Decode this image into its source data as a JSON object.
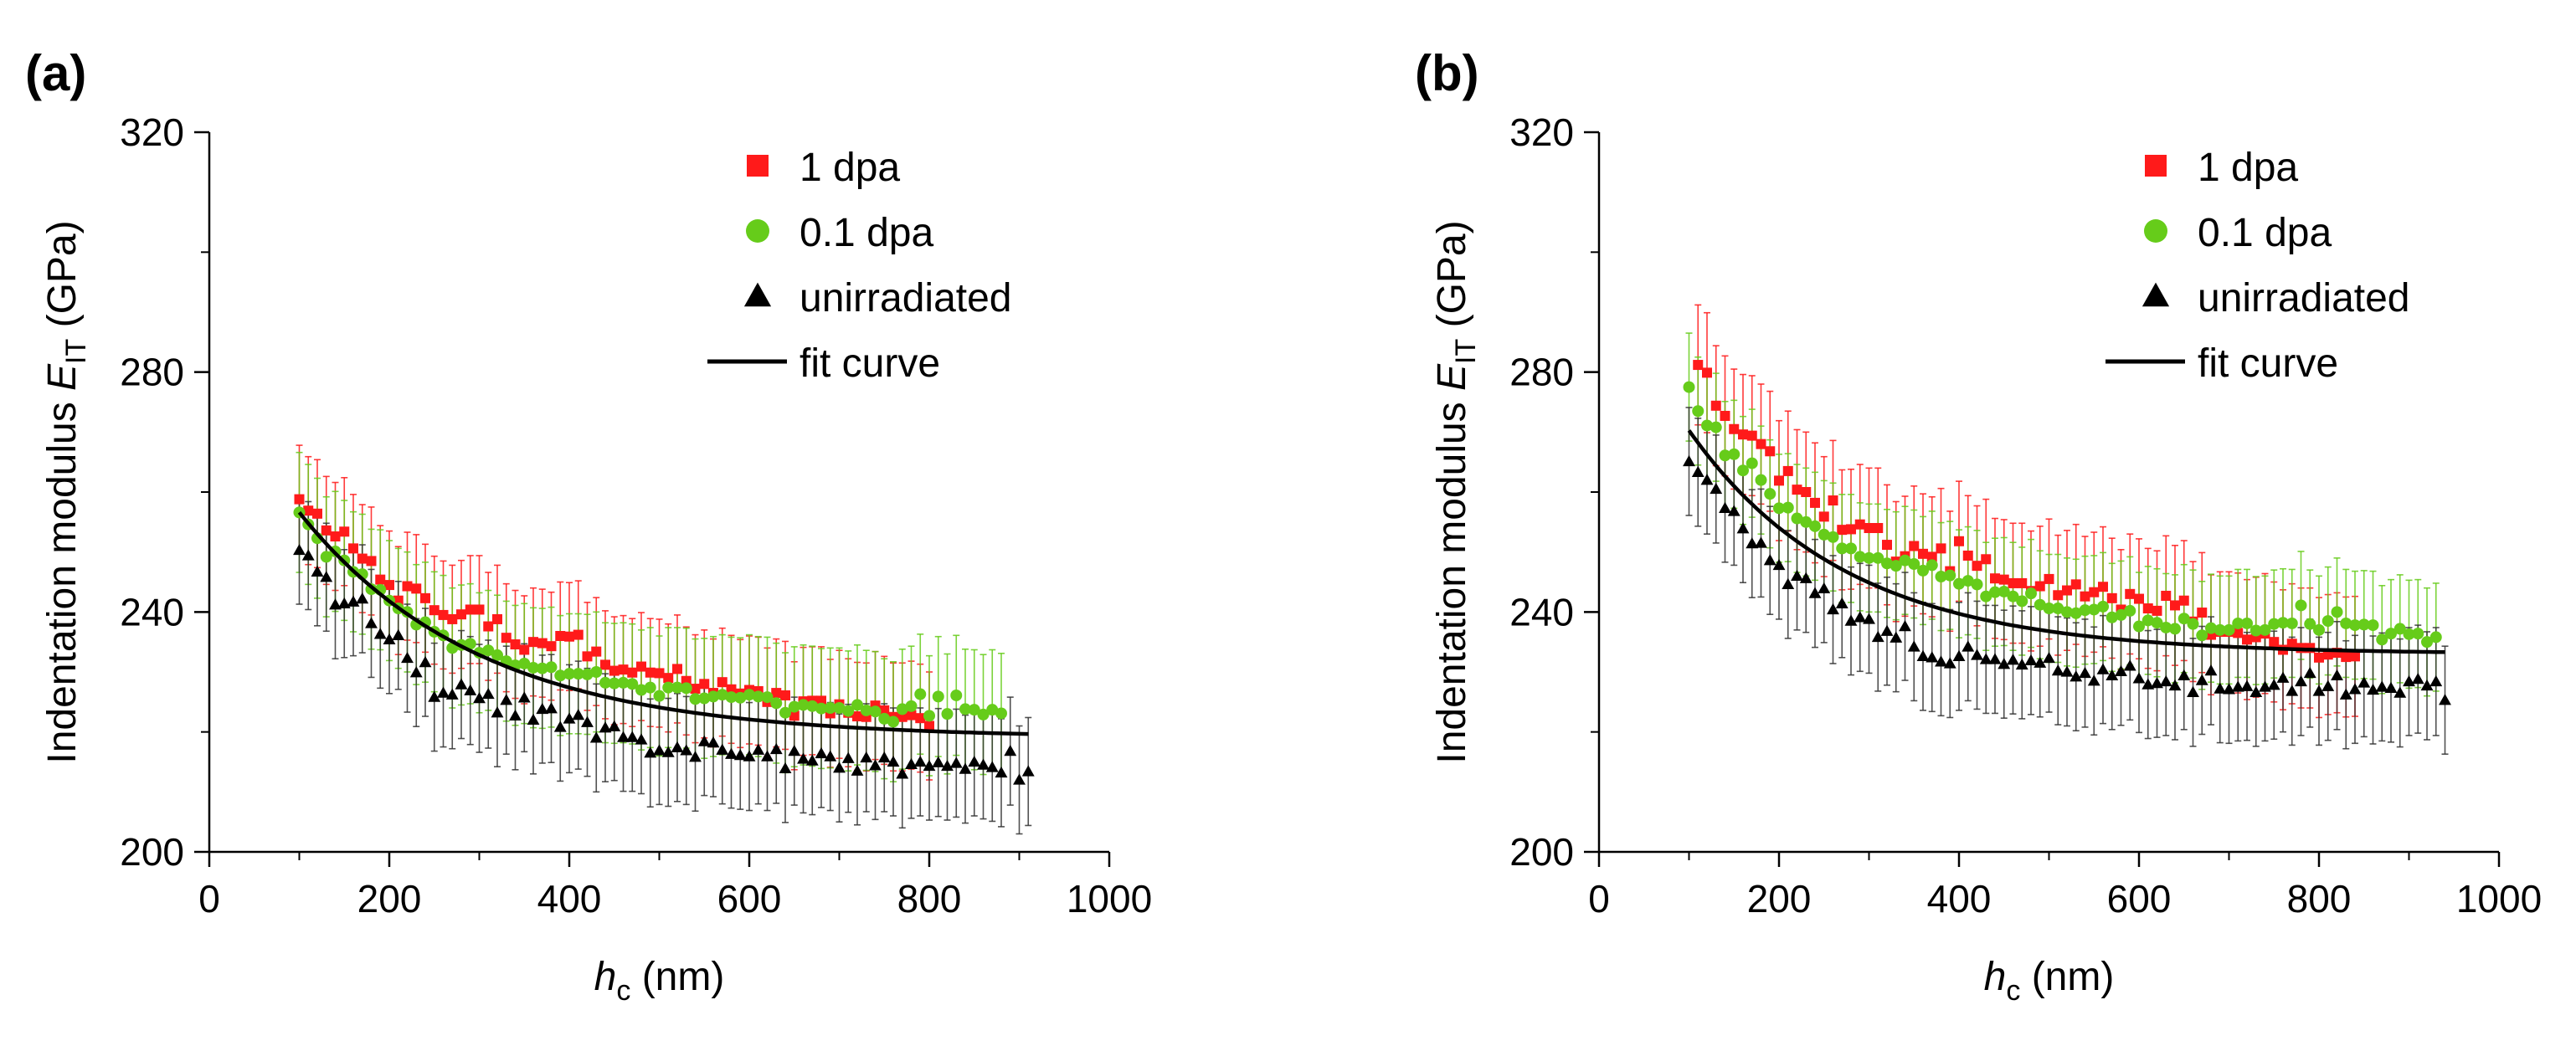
{
  "chart_data": [
    {
      "type": "scatter",
      "panel_label": "(a)",
      "title": "",
      "xlabel": {
        "italic": "h",
        "sub": "c",
        "rest": " (nm)"
      },
      "ylabel": {
        "prefix": "Indentation modulus ",
        "italic": "E",
        "sub": "IT",
        "rest": " (GPa)"
      },
      "xlim": [
        0,
        1000
      ],
      "ylim": [
        200,
        320
      ],
      "xticks": [
        0,
        200,
        400,
        600,
        800,
        1000
      ],
      "yticks": [
        200,
        240,
        280,
        320
      ],
      "grid": false,
      "legend_position": "top-right",
      "fit_curve": {
        "name": "fit curve",
        "x_range": [
          100,
          910
        ],
        "y_inf": 219,
        "amplitude": 62,
        "decay_nm": 200
      },
      "series": [
        {
          "name": "1 dpa",
          "marker": "square",
          "color": "#ff1a1a",
          "x_start": 100,
          "x_step": 10,
          "y": [
            258.8,
            256.9,
            256.4,
            253.6,
            252.6,
            253.4,
            250.6,
            248.9,
            248.5,
            245.4,
            244.5,
            241.9,
            244.3,
            243.9,
            242.3,
            240.3,
            239.5,
            238.8,
            239.6,
            240.4,
            240.4,
            237.6,
            238.8,
            235.7,
            234.6,
            233.7,
            235.0,
            234.8,
            234.3,
            236.0,
            235.9,
            236.2,
            232.6,
            233.4,
            231.2,
            230.2,
            230.4,
            229.9,
            230.9,
            229.9,
            229.8,
            229.0,
            230.5,
            228.5,
            227.2,
            228.0,
            226.5,
            228.3,
            227.1,
            226.4,
            227.0,
            226.8,
            225.0,
            226.5,
            226.1,
            222.7,
            225.1,
            225.2,
            225.2,
            223.1,
            224.6,
            223.2,
            222.6,
            222.5,
            224.4,
            223.6,
            222.5,
            222.5,
            222.8,
            222.3,
            221.0
          ],
          "err": [
            9,
            9,
            9,
            9,
            9,
            9,
            9,
            9,
            9,
            9,
            9,
            9,
            9,
            9,
            9,
            9,
            9,
            9,
            9,
            9,
            9,
            9,
            9,
            9,
            9,
            9,
            9,
            9,
            9,
            9,
            9,
            9,
            9,
            9,
            9,
            9,
            9,
            9,
            9,
            9,
            9,
            9,
            9,
            9,
            9,
            9,
            9,
            9,
            9,
            9,
            9,
            9,
            9,
            9,
            9,
            9,
            9,
            9,
            9,
            9,
            9,
            9,
            9,
            9,
            9,
            9,
            9,
            9,
            9,
            9,
            9
          ]
        },
        {
          "name": "0.1 dpa",
          "marker": "circle",
          "color": "#66cc1a",
          "x_start": 100,
          "x_step": 10,
          "y": [
            256.6,
            254.6,
            252.3,
            249.2,
            250.1,
            248.6,
            246.7,
            246.3,
            243.8,
            243.7,
            241.9,
            240.6,
            240.0,
            237.9,
            238.3,
            236.7,
            236.1,
            234.0,
            234.5,
            234.7,
            233.2,
            233.6,
            232.8,
            231.8,
            231.1,
            231.4,
            230.7,
            230.6,
            230.8,
            229.4,
            229.7,
            229.7,
            229.6,
            230.0,
            228.2,
            228.1,
            228.2,
            228.0,
            227.0,
            227.4,
            226.0,
            227.4,
            227.4,
            227.3,
            225.5,
            225.6,
            225.9,
            226.2,
            225.8,
            225.7,
            226.2,
            225.9,
            225.8,
            224.8,
            223.2,
            224.2,
            224.5,
            224.3,
            223.9,
            224.0,
            224.0,
            223.5,
            224.5,
            223.6,
            223.4,
            222.2,
            221.7,
            223.8,
            224.3,
            226.3,
            222.7,
            225.9,
            223.0,
            226.1,
            223.8,
            223.7,
            222.9,
            223.7,
            223.1
          ],
          "err": [
            10,
            10,
            10,
            10,
            10,
            10,
            10,
            10,
            10,
            10,
            10,
            10,
            10,
            10,
            10,
            10,
            10,
            10,
            10,
            10,
            10,
            10,
            10,
            10,
            10,
            10,
            10,
            10,
            10,
            10,
            10,
            10,
            10,
            10,
            10,
            10,
            10,
            10,
            10,
            10,
            10,
            10,
            10,
            10,
            10,
            10,
            10,
            10,
            10,
            10,
            10,
            10,
            10,
            10,
            10,
            10,
            10,
            10,
            10,
            10,
            10,
            10,
            10,
            10,
            10,
            10,
            10,
            10,
            10,
            10,
            10,
            10,
            10,
            10,
            10,
            10,
            10,
            10,
            10
          ]
        },
        {
          "name": "unirradiated",
          "marker": "triangle",
          "color": "#000000",
          "x_start": 100,
          "x_step": 10,
          "y": [
            250.3,
            249.4,
            246.7,
            245.8,
            241.2,
            241.4,
            241.7,
            242.2,
            238.1,
            236.3,
            235.4,
            236.1,
            232.3,
            229.9,
            231.6,
            225.8,
            226.5,
            226.2,
            227.9,
            226.9,
            225.6,
            226.3,
            223.2,
            225.3,
            222.7,
            225.7,
            222.0,
            223.8,
            223.9,
            220.8,
            222.2,
            222.8,
            221.6,
            219.0,
            220.7,
            220.9,
            219.1,
            219.1,
            218.7,
            216.5,
            216.9,
            216.6,
            217.4,
            216.9,
            215.8,
            218.4,
            218.2,
            217.0,
            216.3,
            216.1,
            215.9,
            217.0,
            215.9,
            217.1,
            213.9,
            216.8,
            215.5,
            215.2,
            216.4,
            215.9,
            214.0,
            215.6,
            213.5,
            215.7,
            214.4,
            215.7,
            215.0,
            213.0,
            214.6,
            215.0,
            214.3,
            214.9,
            214.3,
            214.8,
            213.8,
            215.0,
            214.5,
            214.1,
            213.2,
            216.8,
            212.0,
            213.4
          ],
          "err": [
            9,
            9,
            9,
            9,
            9,
            9,
            9,
            9,
            9,
            9,
            9,
            9,
            9,
            9,
            9,
            9,
            9,
            9,
            9,
            9,
            9,
            9,
            9,
            9,
            9,
            9,
            9,
            9,
            9,
            9,
            9,
            9,
            9,
            9,
            9,
            9,
            9,
            9,
            9,
            9,
            9,
            9,
            9,
            9,
            9,
            9,
            9,
            9,
            9,
            9,
            9,
            9,
            9,
            9,
            9,
            9,
            9,
            9,
            9,
            9,
            9,
            9,
            9,
            9,
            9,
            9,
            9,
            9,
            9,
            9,
            9,
            9,
            9,
            9,
            9,
            9,
            9,
            9,
            9,
            9,
            9,
            9
          ]
        }
      ]
    },
    {
      "type": "scatter",
      "panel_label": "(b)",
      "title": "",
      "xlabel": {
        "italic": "h",
        "sub": "c",
        "rest": " (nm)"
      },
      "ylabel": {
        "prefix": "Indentation modulus ",
        "italic": "E",
        "sub": "IT",
        "rest": " (GPa)"
      },
      "xlim": [
        0,
        1000
      ],
      "ylim": [
        200,
        320
      ],
      "xticks": [
        0,
        200,
        400,
        600,
        800,
        1000
      ],
      "yticks": [
        200,
        240,
        280,
        320
      ],
      "grid": false,
      "legend_position": "top-right",
      "fit_curve": {
        "name": "fit curve",
        "x_range": [
          100,
          940
        ],
        "y_inf": 233,
        "amplitude": 66,
        "decay_nm": 175
      },
      "series": [
        {
          "name": "1 dpa",
          "marker": "square",
          "color": "#ff1a1a",
          "x_start": 110,
          "x_step": 10,
          "y": [
            281.2,
            279.9,
            274.4,
            272.7,
            270.5,
            269.6,
            269.4,
            268.0,
            266.8,
            261.9,
            263.5,
            260.4,
            260.0,
            258.2,
            255.9,
            258.6,
            253.7,
            253.8,
            254.6,
            254.0,
            254.0,
            251.2,
            248.4,
            249.3,
            251.0,
            249.7,
            249.2,
            250.6,
            246.8,
            251.8,
            249.4,
            247.7,
            248.8,
            245.6,
            245.4,
            244.8,
            244.8,
            243.5,
            244.3,
            245.5,
            242.8,
            243.6,
            244.6,
            242.6,
            243.3,
            244.2,
            242.3,
            240.4,
            243.0,
            242.2,
            240.6,
            240.2,
            242.7,
            241.1,
            241.9,
            238.4,
            239.9,
            236.2,
            236.7,
            236.7,
            236.5,
            235.4,
            235.8,
            236.4,
            235.0,
            233.7,
            234.7,
            234.0,
            234.0,
            232.4,
            232.9,
            233.2,
            232.5,
            232.6
          ],
          "err": [
            10,
            10,
            10,
            10,
            10,
            10,
            10,
            10,
            10,
            10,
            10,
            10,
            10,
            10,
            10,
            10,
            10,
            10,
            10,
            10,
            10,
            10,
            10,
            10,
            10,
            10,
            10,
            10,
            10,
            10,
            10,
            10,
            10,
            10,
            10,
            10,
            10,
            10,
            10,
            10,
            10,
            10,
            10,
            10,
            10,
            10,
            10,
            10,
            10,
            10,
            10,
            10,
            10,
            10,
            10,
            10,
            10,
            10,
            10,
            10,
            10,
            10,
            10,
            10,
            10,
            10,
            10,
            10,
            10,
            10,
            10,
            10,
            10,
            10
          ]
        },
        {
          "name": "0.1 dpa",
          "marker": "circle",
          "color": "#66cc1a",
          "x_start": 100,
          "x_step": 10,
          "y": [
            277.5,
            273.5,
            271.1,
            270.8,
            266.1,
            266.3,
            263.6,
            264.8,
            262.0,
            259.7,
            257.3,
            257.4,
            255.6,
            255.0,
            254.3,
            252.9,
            252.5,
            250.6,
            250.6,
            249.2,
            249.0,
            249.0,
            248.1,
            247.7,
            248.6,
            248.0,
            246.9,
            247.8,
            245.9,
            246.1,
            244.7,
            245.2,
            244.6,
            242.6,
            243.3,
            243.4,
            242.6,
            241.8,
            243.1,
            241.2,
            240.6,
            240.6,
            240.0,
            239.8,
            240.3,
            240.4,
            240.9,
            239.1,
            239.5,
            240.2,
            237.6,
            238.6,
            238.2,
            237.4,
            237.2,
            238.9,
            238.0,
            236.1,
            237.3,
            237.0,
            237.0,
            238.1,
            238.1,
            236.9,
            237.0,
            238.0,
            238.2,
            238.1,
            241.1,
            238.0,
            237.0,
            238.5,
            240.0,
            238.1,
            237.8,
            237.9,
            237.8,
            235.4,
            236.4,
            237.2,
            236.3,
            236.4,
            235.0,
            235.8
          ],
          "err": [
            9,
            9,
            9,
            9,
            9,
            9,
            9,
            9,
            9,
            9,
            9,
            9,
            9,
            9,
            9,
            9,
            9,
            9,
            9,
            9,
            9,
            9,
            9,
            9,
            9,
            9,
            9,
            9,
            9,
            9,
            9,
            9,
            9,
            9,
            9,
            9,
            9,
            9,
            9,
            9,
            9,
            9,
            9,
            9,
            9,
            9,
            9,
            9,
            9,
            9,
            9,
            9,
            9,
            9,
            9,
            9,
            9,
            9,
            9,
            9,
            9,
            9,
            9,
            9,
            9,
            9,
            9,
            9,
            9,
            9,
            9,
            9,
            9,
            9,
            9,
            9,
            9,
            9,
            9,
            9,
            9,
            9,
            9,
            9
          ]
        },
        {
          "name": "unirradiated",
          "marker": "triangle",
          "color": "#000000",
          "x_start": 100,
          "x_step": 10,
          "y": [
            265.1,
            263.3,
            262.0,
            260.5,
            257.3,
            256.8,
            253.9,
            251.4,
            251.5,
            248.6,
            247.8,
            244.6,
            246.0,
            245.6,
            243.1,
            243.9,
            240.4,
            241.4,
            238.5,
            239.1,
            238.8,
            235.8,
            236.8,
            235.7,
            237.6,
            234.2,
            232.6,
            232.4,
            231.7,
            231.4,
            232.6,
            234.2,
            232.8,
            232.1,
            232.1,
            231.3,
            232.0,
            231.2,
            231.9,
            231.5,
            232.3,
            230.2,
            230.0,
            229.2,
            229.8,
            228.5,
            230.4,
            229.4,
            230.1,
            231.0,
            228.9,
            227.9,
            228.1,
            228.4,
            227.7,
            229.4,
            226.6,
            228.6,
            230.2,
            227.2,
            227.1,
            227.5,
            227.6,
            226.6,
            227.5,
            227.8,
            229.0,
            226.8,
            228.4,
            229.8,
            226.8,
            227.6,
            229.4,
            226.2,
            227.1,
            228.2,
            227.0,
            227.5,
            227.3,
            226.5,
            228.4,
            228.8,
            227.7,
            228.4,
            225.3
          ],
          "err": [
            9,
            9,
            9,
            9,
            9,
            9,
            9,
            9,
            9,
            9,
            9,
            9,
            9,
            9,
            9,
            9,
            9,
            9,
            9,
            9,
            9,
            9,
            9,
            9,
            9,
            9,
            9,
            9,
            9,
            9,
            9,
            9,
            9,
            9,
            9,
            9,
            9,
            9,
            9,
            9,
            9,
            9,
            9,
            9,
            9,
            9,
            9,
            9,
            9,
            9,
            9,
            9,
            9,
            9,
            9,
            9,
            9,
            9,
            9,
            9,
            9,
            9,
            9,
            9,
            9,
            9,
            9,
            9,
            9,
            9,
            9,
            9,
            9,
            9,
            9,
            9,
            9,
            9,
            9,
            9,
            9,
            9,
            9,
            9,
            9
          ]
        }
      ]
    }
  ]
}
